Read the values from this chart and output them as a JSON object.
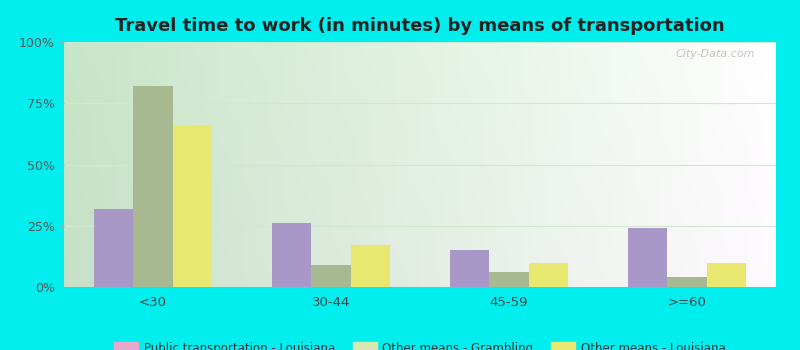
{
  "title": "Travel time to work (in minutes) by means of transportation",
  "categories": [
    "<30",
    "30-44",
    "45-59",
    ">=60"
  ],
  "series": {
    "Public transportation - Louisiana": [
      32,
      26,
      15,
      24
    ],
    "Other means - Grambling": [
      82,
      9,
      6,
      4
    ],
    "Other means - Louisiana": [
      66,
      17,
      10,
      10
    ]
  },
  "bar_colors": {
    "Public transportation - Louisiana": "#a898c8",
    "Other means - Grambling": "#a8b890",
    "Other means - Louisiana": "#e8e870"
  },
  "legend_colors": {
    "Public transportation - Louisiana": "#e8a8cc",
    "Other means - Grambling": "#d8e8b0",
    "Other means - Louisiana": "#e8e870"
  },
  "ylim": [
    0,
    100
  ],
  "yticks": [
    0,
    25,
    50,
    75,
    100
  ],
  "ytick_labels": [
    "0%",
    "25%",
    "50%",
    "75%",
    "100%"
  ],
  "bg_left_color": "#c8e8c0",
  "bg_right_color": "#f0f8f0",
  "figure_bg": "#00eeee",
  "grid_color": "#d0e8d0",
  "bar_width": 0.22,
  "title_fontsize": 13,
  "watermark": "City-Data.com"
}
